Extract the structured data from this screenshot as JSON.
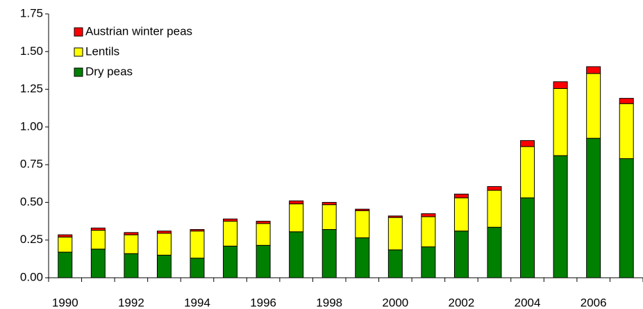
{
  "chart_data": {
    "type": "stacked-bar",
    "categories": [
      "1990",
      null,
      "1992",
      null,
      "1994",
      null,
      "1996",
      null,
      "1998",
      null,
      "2000",
      null,
      "2002",
      null,
      "2004",
      null,
      "2006",
      null
    ],
    "series": [
      {
        "name": "Dry peas",
        "color": "#008000",
        "values": [
          0.17,
          0.19,
          0.16,
          0.15,
          0.13,
          0.21,
          0.215,
          0.305,
          0.32,
          0.265,
          0.185,
          0.205,
          0.31,
          0.335,
          0.53,
          0.81,
          0.925,
          0.79
        ]
      },
      {
        "name": "Lentils",
        "color": "#ffff00",
        "values": [
          0.1,
          0.125,
          0.125,
          0.145,
          0.18,
          0.165,
          0.145,
          0.185,
          0.165,
          0.18,
          0.215,
          0.2,
          0.22,
          0.245,
          0.34,
          0.445,
          0.43,
          0.365
        ]
      },
      {
        "name": "Austrian winter peas",
        "color": "#ff0000",
        "values": [
          0.015,
          0.015,
          0.015,
          0.015,
          0.01,
          0.015,
          0.015,
          0.02,
          0.015,
          0.01,
          0.01,
          0.02,
          0.025,
          0.025,
          0.04,
          0.045,
          0.045,
          0.035
        ]
      }
    ],
    "ylim": [
      0,
      1.75
    ],
    "yticks": [
      {
        "value": 0,
        "label": "0.00"
      },
      {
        "value": 0.25,
        "label": "0.25"
      },
      {
        "value": 0.5,
        "label": "0.50"
      },
      {
        "value": 0.75,
        "label": "0.75"
      },
      {
        "value": 1,
        "label": "1.00"
      },
      {
        "value": 1.25,
        "label": "1.25"
      },
      {
        "value": 1.5,
        "label": "1.50"
      },
      {
        "value": 1.75,
        "label": "1.75"
      }
    ],
    "grid": false,
    "legend": "top-left"
  }
}
